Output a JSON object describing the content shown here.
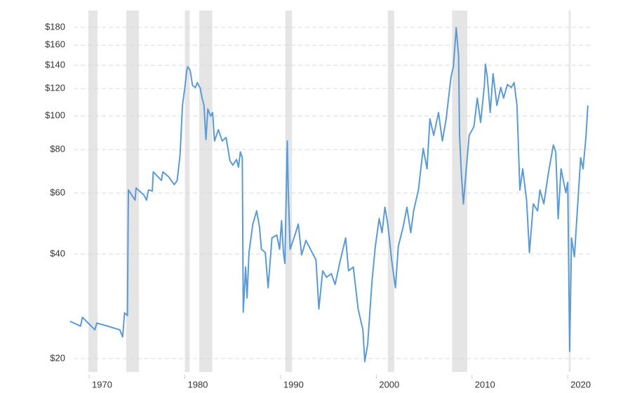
{
  "chart_data": {
    "type": "line",
    "color": "#5b9bd5",
    "shade_color": "#e5e5e5",
    "yscale": "log",
    "grid": true,
    "xlim": [
      1967.65,
      2022.55
    ],
    "xticks": [
      1970,
      1980,
      1990,
      2000,
      2010,
      2020
    ],
    "ylim": [
      18.3,
      206
    ],
    "yticks": [
      {
        "value": 20,
        "label": "$20"
      },
      {
        "value": 40,
        "label": "$40"
      },
      {
        "value": 60,
        "label": "$60"
      },
      {
        "value": 80,
        "label": "$80"
      },
      {
        "value": 100,
        "label": "$100"
      },
      {
        "value": 120,
        "label": "$120"
      },
      {
        "value": 140,
        "label": "$140"
      },
      {
        "value": 160,
        "label": "$160"
      },
      {
        "value": 180,
        "label": "$180"
      }
    ],
    "shaded_ranges": [
      [
        1969.92,
        1970.87
      ],
      [
        1973.87,
        1975.2
      ],
      [
        1980.0,
        1980.5
      ],
      [
        1981.5,
        1982.87
      ],
      [
        1990.5,
        1991.2
      ],
      [
        2001.2,
        2001.87
      ],
      [
        2007.92,
        2009.5
      ],
      [
        2020.1,
        2020.3
      ]
    ],
    "x": [
      1968.0,
      1969.1,
      1969.3,
      1970.6,
      1970.8,
      1971.5,
      1973.2,
      1973.5,
      1973.7,
      1974.0,
      1974.1,
      1974.8,
      1974.9,
      1975.7,
      1976.0,
      1976.2,
      1976.6,
      1976.7,
      1977.55,
      1977.7,
      1978.3,
      1978.9,
      1979.2,
      1979.5,
      1979.75,
      1980.0,
      1980.2,
      1980.3,
      1980.55,
      1980.8,
      1981.1,
      1981.3,
      1981.6,
      1981.8,
      1982.0,
      1982.2,
      1982.4,
      1982.7,
      1982.9,
      1983.1,
      1983.5,
      1983.9,
      1984.3,
      1984.5,
      1984.7,
      1985.0,
      1985.4,
      1985.6,
      1985.8,
      1986.0,
      1986.1,
      1986.35,
      1986.5,
      1986.7,
      1987.1,
      1987.5,
      1987.8,
      1988.0,
      1988.4,
      1988.7,
      1989.1,
      1989.6,
      1989.9,
      1990.1,
      1990.3,
      1990.45,
      1990.7,
      1990.8,
      1991.0,
      1991.5,
      1991.85,
      1992.2,
      1992.65,
      1993.3,
      1993.7,
      1994.0,
      1994.4,
      1994.8,
      1995.3,
      1995.7,
      1996.25,
      1996.8,
      1997.1,
      1997.6,
      1998.1,
      1998.6,
      1998.8,
      1999.1,
      1999.55,
      1999.9,
      2000.3,
      2000.6,
      2000.9,
      2001.2,
      2001.6,
      2002.0,
      2002.3,
      2002.8,
      2003.2,
      2003.6,
      2003.9,
      2004.4,
      2004.9,
      2005.3,
      2005.6,
      2006.0,
      2006.5,
      2006.9,
      2007.3,
      2007.8,
      2008.05,
      2008.35,
      2008.6,
      2008.7,
      2008.9,
      2009.1,
      2009.4,
      2009.7,
      2010.2,
      2010.55,
      2010.9,
      2011.3,
      2011.4,
      2011.6,
      2011.9,
      2012.2,
      2012.6,
      2013.0,
      2013.3,
      2013.7,
      2014.1,
      2014.4,
      2014.7,
      2015.0,
      2015.3,
      2015.7,
      2016.0,
      2016.4,
      2016.85,
      2017.1,
      2017.5,
      2018.0,
      2018.5,
      2018.75,
      2019.0,
      2019.3,
      2019.8,
      2020.0,
      2020.2,
      2020.4,
      2020.7,
      2021.0,
      2021.35,
      2021.6,
      2021.9,
      2022.1
    ],
    "values": [
      25.6,
      24.8,
      26.3,
      24.2,
      25.3,
      25.0,
      24.2,
      23.1,
      27.1,
      26.6,
      61.2,
      57.2,
      62.0,
      59.3,
      57.2,
      61.2,
      60.8,
      69.0,
      65.2,
      69.0,
      66.8,
      63.4,
      65.2,
      77.3,
      107.2,
      120.8,
      135.3,
      138.6,
      135.3,
      122.5,
      120.8,
      124.8,
      120.3,
      112.6,
      107.2,
      85.5,
      104.7,
      99.9,
      102.3,
      84.7,
      91.3,
      84.7,
      86.7,
      80.6,
      74.4,
      72.2,
      74.9,
      71.2,
      78.8,
      75.8,
      27.2,
      36.7,
      29.9,
      40.4,
      48.8,
      53.3,
      47.8,
      41.3,
      40.4,
      32.0,
      44.5,
      45.4,
      41.3,
      49.9,
      40.4,
      37.6,
      84.7,
      61.2,
      41.3,
      45.4,
      48.8,
      39.8,
      43.8,
      40.4,
      38.5,
      27.8,
      35.8,
      34.3,
      35.1,
      32.7,
      38.5,
      44.5,
      35.8,
      36.7,
      27.8,
      24.2,
      19.6,
      22.0,
      33.4,
      42.1,
      50.6,
      46.1,
      54.6,
      48.8,
      38.5,
      32.0,
      42.1,
      47.8,
      54.6,
      46.1,
      53.3,
      61.2,
      80.6,
      70.4,
      98.1,
      87.9,
      102.3,
      84.7,
      98.1,
      129.3,
      138.6,
      179.6,
      148.5,
      87.9,
      67.2,
      55.8,
      70.4,
      87.9,
      93.2,
      112.6,
      95.8,
      123.2,
      141.0,
      129.3,
      102.3,
      132.3,
      107.2,
      120.8,
      112.6,
      123.2,
      120.8,
      124.8,
      107.2,
      61.2,
      70.4,
      57.2,
      40.4,
      55.8,
      53.3,
      61.2,
      55.8,
      69.0,
      82.5,
      78.8,
      50.6,
      70.4,
      60.1,
      64.4,
      21.0,
      44.5,
      39.3,
      53.3,
      75.8,
      70.4,
      86.7,
      107.2
    ]
  }
}
